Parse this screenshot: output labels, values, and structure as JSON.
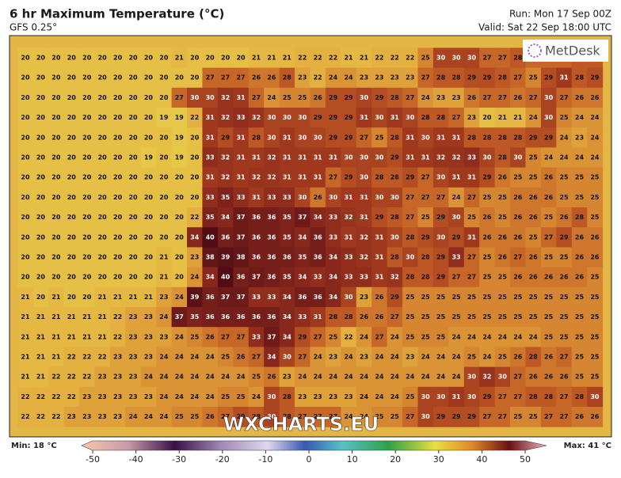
{
  "header": {
    "title": "6 hr Maximum Temperature (°C)",
    "model": "GFS 0.25°",
    "run": "Run: Mon 17 Sep 00Z",
    "valid": "Valid: Sat 22 Sep 18:00 UTC"
  },
  "logo": "MetDesk",
  "watermark": "WXCHARTS.EU",
  "grid": [
    [
      20,
      20,
      20,
      20,
      20,
      20,
      20,
      20,
      20,
      20,
      21,
      20,
      20,
      20,
      20,
      21,
      21,
      21,
      22,
      22,
      22,
      21,
      21,
      22,
      22,
      22,
      25,
      30,
      30,
      30,
      27,
      27,
      28,
      27,
      27,
      27,
      28,
      28
    ],
    [
      20,
      20,
      20,
      20,
      20,
      20,
      20,
      20,
      20,
      20,
      20,
      20,
      27,
      27,
      27,
      26,
      26,
      28,
      23,
      22,
      24,
      24,
      23,
      23,
      23,
      23,
      27,
      28,
      28,
      29,
      29,
      28,
      27,
      25,
      29,
      31,
      28,
      29
    ],
    [
      20,
      20,
      20,
      20,
      20,
      20,
      20,
      20,
      20,
      20,
      27,
      30,
      30,
      32,
      31,
      27,
      24,
      25,
      25,
      26,
      29,
      29,
      30,
      29,
      28,
      27,
      24,
      23,
      23,
      26,
      27,
      27,
      26,
      27,
      30,
      27,
      26,
      26
    ],
    [
      20,
      20,
      20,
      20,
      20,
      20,
      20,
      20,
      20,
      19,
      19,
      22,
      31,
      32,
      33,
      32,
      30,
      30,
      30,
      29,
      29,
      29,
      31,
      30,
      31,
      30,
      28,
      28,
      27,
      23,
      20,
      21,
      21,
      24,
      30,
      25,
      24,
      24
    ],
    [
      20,
      20,
      20,
      20,
      20,
      20,
      20,
      20,
      20,
      20,
      19,
      20,
      31,
      29,
      31,
      28,
      30,
      31,
      30,
      30,
      29,
      29,
      27,
      25,
      28,
      31,
      30,
      31,
      31,
      28,
      28,
      28,
      28,
      29,
      29,
      24,
      23,
      24
    ],
    [
      20,
      20,
      20,
      20,
      20,
      20,
      20,
      20,
      19,
      20,
      19,
      20,
      33,
      32,
      31,
      31,
      32,
      31,
      31,
      31,
      31,
      30,
      30,
      30,
      29,
      31,
      31,
      32,
      32,
      33,
      30,
      28,
      30,
      25,
      24,
      24,
      24,
      24
    ],
    [
      20,
      20,
      20,
      20,
      20,
      20,
      20,
      20,
      20,
      20,
      20,
      20,
      31,
      32,
      31,
      32,
      32,
      31,
      31,
      31,
      27,
      29,
      30,
      28,
      28,
      29,
      27,
      30,
      31,
      31,
      29,
      26,
      25,
      25,
      26,
      25,
      25,
      25
    ],
    [
      20,
      20,
      20,
      20,
      20,
      20,
      20,
      20,
      20,
      20,
      20,
      20,
      33,
      35,
      33,
      31,
      33,
      33,
      30,
      26,
      30,
      31,
      31,
      30,
      30,
      27,
      27,
      27,
      24,
      27,
      25,
      25,
      26,
      26,
      26,
      25,
      25,
      25
    ],
    [
      20,
      20,
      20,
      20,
      20,
      20,
      20,
      20,
      20,
      20,
      20,
      22,
      35,
      34,
      37,
      36,
      36,
      35,
      37,
      34,
      33,
      32,
      31,
      29,
      28,
      27,
      25,
      29,
      30,
      25,
      26,
      25,
      26,
      26,
      25,
      26,
      28,
      25
    ],
    [
      20,
      20,
      20,
      20,
      20,
      20,
      20,
      20,
      20,
      20,
      20,
      34,
      40,
      36,
      37,
      36,
      36,
      35,
      34,
      36,
      33,
      31,
      32,
      31,
      30,
      28,
      29,
      30,
      29,
      31,
      26,
      26,
      26,
      25,
      27,
      29,
      26,
      26
    ],
    [
      20,
      20,
      20,
      20,
      20,
      20,
      20,
      20,
      20,
      21,
      20,
      23,
      38,
      39,
      38,
      36,
      36,
      36,
      35,
      36,
      34,
      33,
      32,
      31,
      28,
      30,
      28,
      29,
      33,
      27,
      25,
      26,
      27,
      26,
      25,
      25,
      26,
      26
    ],
    [
      20,
      20,
      20,
      20,
      20,
      20,
      20,
      20,
      20,
      21,
      20,
      24,
      34,
      40,
      36,
      37,
      36,
      35,
      34,
      33,
      34,
      33,
      33,
      31,
      32,
      28,
      28,
      29,
      27,
      27,
      25,
      25,
      26,
      26,
      26,
      26,
      26,
      25
    ],
    [
      21,
      20,
      21,
      20,
      20,
      21,
      21,
      21,
      21,
      23,
      24,
      39,
      36,
      37,
      37,
      33,
      33,
      34,
      36,
      36,
      34,
      30,
      23,
      26,
      29,
      25,
      25,
      25,
      25,
      25,
      25,
      25,
      25,
      25,
      25,
      25,
      25,
      25
    ],
    [
      21,
      21,
      21,
      21,
      21,
      21,
      22,
      23,
      23,
      24,
      37,
      35,
      36,
      36,
      36,
      36,
      36,
      34,
      33,
      31,
      28,
      28,
      26,
      26,
      27,
      25,
      25,
      25,
      25,
      25,
      25,
      25,
      25,
      25,
      25,
      25,
      25,
      25
    ],
    [
      21,
      21,
      21,
      21,
      21,
      21,
      22,
      23,
      23,
      23,
      24,
      25,
      26,
      27,
      27,
      33,
      37,
      34,
      29,
      27,
      25,
      22,
      24,
      27,
      24,
      25,
      25,
      25,
      24,
      24,
      24,
      24,
      24,
      24,
      25,
      25,
      25,
      25
    ],
    [
      21,
      21,
      21,
      22,
      22,
      22,
      23,
      23,
      23,
      24,
      24,
      24,
      24,
      25,
      26,
      27,
      34,
      30,
      27,
      24,
      23,
      24,
      23,
      24,
      24,
      23,
      24,
      24,
      24,
      25,
      24,
      25,
      26,
      28,
      26,
      27,
      25,
      25
    ],
    [
      21,
      21,
      22,
      22,
      22,
      23,
      23,
      23,
      24,
      24,
      24,
      24,
      24,
      24,
      24,
      25,
      26,
      23,
      24,
      24,
      24,
      24,
      24,
      24,
      24,
      24,
      24,
      24,
      24,
      30,
      32,
      30,
      27,
      26,
      26,
      26,
      25,
      25
    ],
    [
      22,
      22,
      22,
      22,
      23,
      23,
      23,
      23,
      23,
      24,
      24,
      24,
      24,
      25,
      25,
      24,
      30,
      28,
      23,
      23,
      23,
      23,
      24,
      24,
      24,
      25,
      30,
      30,
      31,
      30,
      29,
      27,
      27,
      28,
      28,
      27,
      28,
      30
    ],
    [
      22,
      22,
      22,
      23,
      23,
      23,
      23,
      24,
      24,
      24,
      25,
      25,
      26,
      27,
      29,
      28,
      30,
      28,
      27,
      27,
      27,
      24,
      24,
      25,
      25,
      27,
      30,
      29,
      29,
      29,
      27,
      27,
      25,
      25,
      27,
      27,
      26,
      26
    ]
  ],
  "colorbar": {
    "min_label": "Min: 18 °C",
    "max_label": "Max: 41 °C",
    "ticks": [
      -50,
      -40,
      -30,
      -20,
      -10,
      0,
      10,
      20,
      30,
      40,
      50
    ]
  }
}
